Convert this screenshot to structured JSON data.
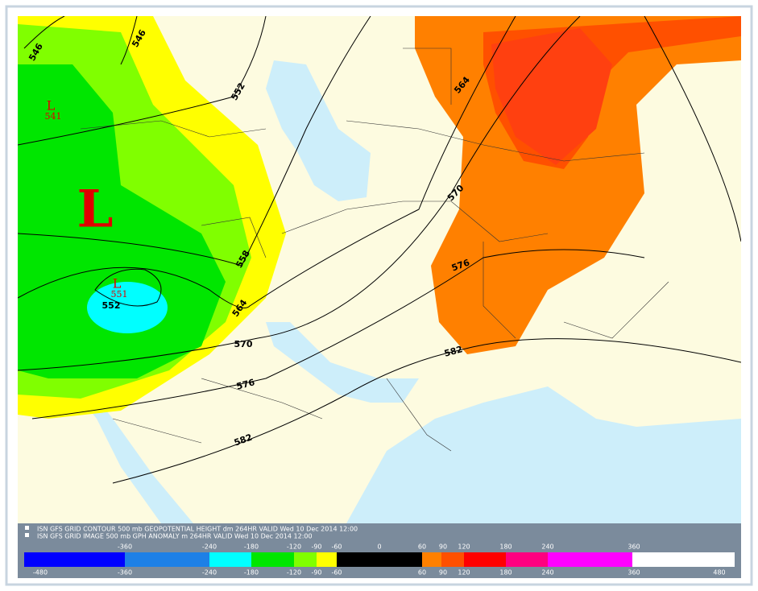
{
  "map": {
    "contour_labels": [
      546,
      546,
      552,
      558,
      564,
      570,
      576,
      582,
      552,
      564,
      570,
      576,
      582
    ],
    "lows": [
      {
        "symbol": "L",
        "value": 541
      },
      {
        "symbol": "L"
      },
      {
        "symbol": "L",
        "value": 551
      }
    ],
    "legend": [
      "ISN GFS GRID CONTOUR 500 mb GEOPOTENTIAL HEIGHT dm 264HR VALID Wed 10 Dec 2014 12:00",
      "ISN GFS GRID IMAGE 500 mb GPH ANOMALY m 264HR VALID Wed 10 Dec 2014 12:00"
    ],
    "colorbar": {
      "colors": [
        "#0000ff",
        "#1e80e6",
        "#00ffff",
        "#00e600",
        "#80ff00",
        "#ffff00",
        "#000000",
        "#ff8000",
        "#ff5000",
        "#ff0000",
        "#ff0080",
        "#ff00ff",
        "#ffffff"
      ],
      "top_labels": [
        -360,
        -240,
        -180,
        -120,
        -90,
        -60,
        0,
        60,
        90,
        120,
        180,
        240,
        360
      ],
      "bottom_labels": [
        -480,
        -360,
        -240,
        -180,
        -120,
        -90,
        -60,
        60,
        90,
        120,
        180,
        240,
        360,
        480
      ]
    }
  }
}
